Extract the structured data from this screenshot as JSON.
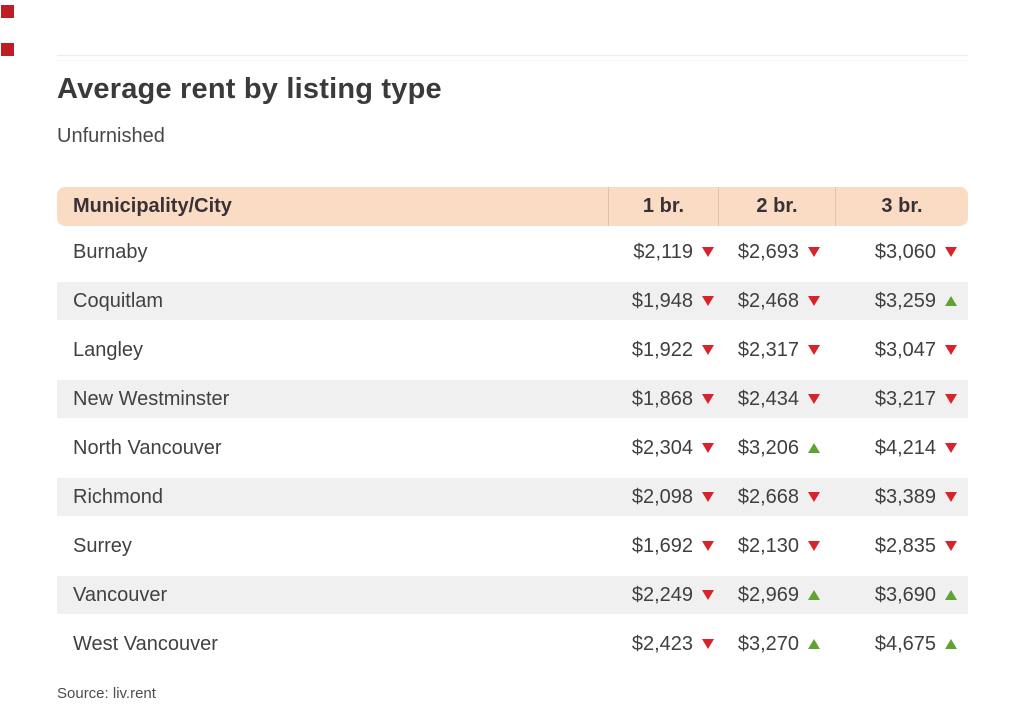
{
  "page": {
    "title": "Average rent by listing type",
    "subtitle": "Unfurnished",
    "source": "Source: liv.rent"
  },
  "colors": {
    "header_peach": "#fadcc5",
    "alt_row_gray": "#f0f0f0",
    "down_red": "#d8232a",
    "up_green": "#5fa332",
    "decor_red": "#bf1d24"
  },
  "table": {
    "header": {
      "city_label": "Municipality/City",
      "columns": [
        "1 br.",
        "2 br.",
        "3 br."
      ]
    },
    "rows": [
      {
        "city": "Burnaby",
        "values": [
          {
            "amount": "$2,119",
            "trend": "down"
          },
          {
            "amount": "$2,693",
            "trend": "down"
          },
          {
            "amount": "$3,060",
            "trend": "down"
          }
        ]
      },
      {
        "city": "Coquitlam",
        "values": [
          {
            "amount": "$1,948",
            "trend": "down"
          },
          {
            "amount": "$2,468",
            "trend": "down"
          },
          {
            "amount": "$3,259",
            "trend": "up"
          }
        ]
      },
      {
        "city": "Langley",
        "values": [
          {
            "amount": "$1,922",
            "trend": "down"
          },
          {
            "amount": "$2,317",
            "trend": "down"
          },
          {
            "amount": "$3,047",
            "trend": "down"
          }
        ]
      },
      {
        "city": "New Westminster",
        "values": [
          {
            "amount": "$1,868",
            "trend": "down"
          },
          {
            "amount": "$2,434",
            "trend": "down"
          },
          {
            "amount": "$3,217",
            "trend": "down"
          }
        ]
      },
      {
        "city": "North Vancouver",
        "values": [
          {
            "amount": "$2,304",
            "trend": "down"
          },
          {
            "amount": "$3,206",
            "trend": "up"
          },
          {
            "amount": "$4,214",
            "trend": "down"
          }
        ]
      },
      {
        "city": "Richmond",
        "values": [
          {
            "amount": "$2,098",
            "trend": "down"
          },
          {
            "amount": "$2,668",
            "trend": "down"
          },
          {
            "amount": "$3,389",
            "trend": "down"
          }
        ]
      },
      {
        "city": "Surrey",
        "values": [
          {
            "amount": "$1,692",
            "trend": "down"
          },
          {
            "amount": "$2,130",
            "trend": "down"
          },
          {
            "amount": "$2,835",
            "trend": "down"
          }
        ]
      },
      {
        "city": "Vancouver",
        "values": [
          {
            "amount": "$2,249",
            "trend": "down"
          },
          {
            "amount": "$2,969",
            "trend": "up"
          },
          {
            "amount": "$3,690",
            "trend": "up"
          }
        ]
      },
      {
        "city": "West Vancouver",
        "values": [
          {
            "amount": "$2,423",
            "trend": "down"
          },
          {
            "amount": "$3,270",
            "trend": "up"
          },
          {
            "amount": "$4,675",
            "trend": "up"
          }
        ]
      }
    ]
  },
  "chart_data": {
    "type": "table",
    "title": "Average rent by listing type",
    "subtitle": "Unfurnished",
    "columns": [
      "Municipality/City",
      "1 br.",
      "2 br.",
      "3 br."
    ],
    "rows": [
      {
        "city": "Burnaby",
        "br1": 2119,
        "br1_trend": "down",
        "br2": 2693,
        "br2_trend": "down",
        "br3": 3060,
        "br3_trend": "down"
      },
      {
        "city": "Coquitlam",
        "br1": 1948,
        "br1_trend": "down",
        "br2": 2468,
        "br2_trend": "down",
        "br3": 3259,
        "br3_trend": "up"
      },
      {
        "city": "Langley",
        "br1": 1922,
        "br1_trend": "down",
        "br2": 2317,
        "br2_trend": "down",
        "br3": 3047,
        "br3_trend": "down"
      },
      {
        "city": "New Westminster",
        "br1": 1868,
        "br1_trend": "down",
        "br2": 2434,
        "br2_trend": "down",
        "br3": 3217,
        "br3_trend": "down"
      },
      {
        "city": "North Vancouver",
        "br1": 2304,
        "br1_trend": "down",
        "br2": 3206,
        "br2_trend": "up",
        "br3": 4214,
        "br3_trend": "down"
      },
      {
        "city": "Richmond",
        "br1": 2098,
        "br1_trend": "down",
        "br2": 2668,
        "br2_trend": "down",
        "br3": 3389,
        "br3_trend": "down"
      },
      {
        "city": "Surrey",
        "br1": 1692,
        "br1_trend": "down",
        "br2": 2130,
        "br2_trend": "down",
        "br3": 2835,
        "br3_trend": "down"
      },
      {
        "city": "Vancouver",
        "br1": 2249,
        "br1_trend": "down",
        "br2": 2969,
        "br2_trend": "up",
        "br3": 3690,
        "br3_trend": "up"
      },
      {
        "city": "West Vancouver",
        "br1": 2423,
        "br1_trend": "down",
        "br2": 3270,
        "br2_trend": "up",
        "br3": 4675,
        "br3_trend": "up"
      }
    ],
    "source": "Source: liv.rent",
    "currency": "CAD"
  }
}
